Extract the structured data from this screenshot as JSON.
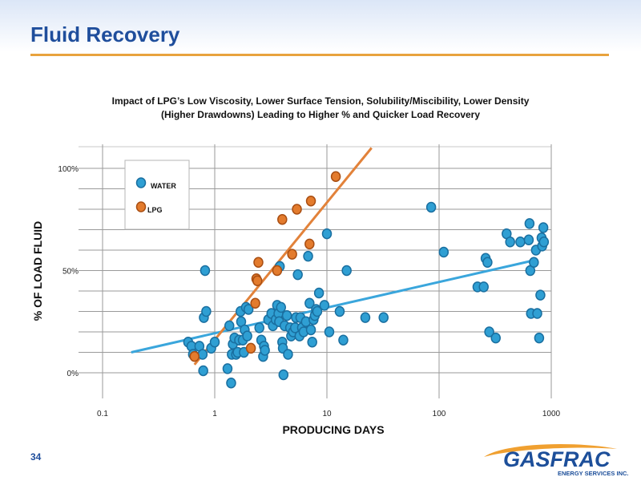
{
  "slide": {
    "title": "Fluid Recovery",
    "page_number": "34",
    "logo_text": "GASFRAC",
    "logo_subtext": "ENERGY SERVICES INC."
  },
  "colors": {
    "title": "#1f4e9c",
    "rule": "#e8a33d",
    "water": "#2f9fd3",
    "lpg": "#e37b2d"
  },
  "chart_data": {
    "type": "scatter",
    "title_lines": [
      "Impact of LPG’s Low Viscosity, Lower Surface Tension, Solubility/Miscibility, Lower Density",
      "(Higher Drawdowns) Leading to Higher % and Quicker Load Recovery"
    ],
    "xlabel": "PRODUCING DAYS",
    "ylabel": "% OF LOAD FLUID",
    "x_scale": "log",
    "xlim": [
      0.1,
      1000
    ],
    "ylim": [
      0,
      100
    ],
    "x_ticks": [
      0.1,
      1,
      10,
      100,
      1000
    ],
    "x_tick_labels": [
      "0.1",
      "1",
      "10",
      "100",
      "1000"
    ],
    "y_ticks": [
      0,
      50,
      100
    ],
    "y_tick_labels": [
      "0%",
      "50%",
      "100%"
    ],
    "grid": true,
    "legend_placement": "top-left",
    "series": [
      {
        "name": "WATER",
        "points": [
          [
            0.58,
            15
          ],
          [
            0.62,
            13
          ],
          [
            0.64,
            9
          ],
          [
            0.73,
            13
          ],
          [
            0.78,
            9
          ],
          [
            0.79,
            1
          ],
          [
            0.8,
            27
          ],
          [
            0.82,
            50
          ],
          [
            0.84,
            30
          ],
          [
            0.93,
            12
          ],
          [
            1.0,
            15
          ],
          [
            1.3,
            2
          ],
          [
            1.35,
            23
          ],
          [
            1.4,
            -5
          ],
          [
            1.42,
            9
          ],
          [
            1.45,
            14
          ],
          [
            1.5,
            17
          ],
          [
            1.55,
            9
          ],
          [
            1.6,
            10
          ],
          [
            1.65,
            16
          ],
          [
            1.7,
            30
          ],
          [
            1.72,
            25
          ],
          [
            1.78,
            16
          ],
          [
            1.82,
            10
          ],
          [
            1.85,
            21
          ],
          [
            1.9,
            32
          ],
          [
            1.95,
            18
          ],
          [
            2.0,
            31
          ],
          [
            2.5,
            22
          ],
          [
            2.6,
            16
          ],
          [
            2.7,
            8
          ],
          [
            2.75,
            13
          ],
          [
            2.8,
            11
          ],
          [
            3.0,
            26
          ],
          [
            3.2,
            29
          ],
          [
            3.3,
            23
          ],
          [
            3.5,
            26
          ],
          [
            3.6,
            33
          ],
          [
            3.7,
            29
          ],
          [
            3.75,
            25
          ],
          [
            3.8,
            52
          ],
          [
            3.9,
            32
          ],
          [
            4.0,
            15
          ],
          [
            4.05,
            12
          ],
          [
            4.1,
            -1
          ],
          [
            4.2,
            23
          ],
          [
            4.4,
            28
          ],
          [
            4.5,
            9
          ],
          [
            4.7,
            22
          ],
          [
            4.8,
            18
          ],
          [
            5.0,
            20
          ],
          [
            5.2,
            22
          ],
          [
            5.3,
            27
          ],
          [
            5.5,
            48
          ],
          [
            5.7,
            18
          ],
          [
            5.8,
            27
          ],
          [
            6.0,
            22
          ],
          [
            6.2,
            20
          ],
          [
            6.5,
            25
          ],
          [
            6.8,
            57
          ],
          [
            7.0,
            34
          ],
          [
            7.2,
            21
          ],
          [
            7.4,
            15
          ],
          [
            7.6,
            26
          ],
          [
            7.8,
            28
          ],
          [
            8.0,
            31
          ],
          [
            8.2,
            30
          ],
          [
            8.5,
            39
          ],
          [
            9.5,
            33
          ],
          [
            10.0,
            68
          ],
          [
            10.5,
            20
          ],
          [
            13.0,
            30
          ],
          [
            14.0,
            16
          ],
          [
            15.0,
            50
          ],
          [
            22.0,
            27
          ],
          [
            32.0,
            27
          ],
          [
            85.0,
            81
          ],
          [
            110.0,
            59
          ],
          [
            220.0,
            42
          ],
          [
            250.0,
            42
          ],
          [
            260.0,
            56
          ],
          [
            270.0,
            54
          ],
          [
            280.0,
            20
          ],
          [
            320.0,
            17
          ],
          [
            400.0,
            68
          ],
          [
            430.0,
            64
          ],
          [
            530.0,
            64
          ],
          [
            630.0,
            65
          ],
          [
            640.0,
            73
          ],
          [
            650.0,
            50
          ],
          [
            660.0,
            29
          ],
          [
            700.0,
            54
          ],
          [
            730.0,
            60
          ],
          [
            750.0,
            29
          ],
          [
            780.0,
            17
          ],
          [
            800.0,
            38
          ],
          [
            820.0,
            66
          ],
          [
            830.0,
            62
          ],
          [
            850.0,
            71
          ],
          [
            860.0,
            64
          ]
        ],
        "trend": [
          [
            0.18,
            10
          ],
          [
            700.0,
            55
          ]
        ]
      },
      {
        "name": "LPG",
        "points": [
          [
            0.66,
            8
          ],
          [
            2.1,
            12
          ],
          [
            2.3,
            34
          ],
          [
            2.35,
            46
          ],
          [
            2.4,
            45
          ],
          [
            2.45,
            54
          ],
          [
            3.6,
            50
          ],
          [
            4.0,
            75
          ],
          [
            4.9,
            58
          ],
          [
            5.4,
            80
          ],
          [
            7.0,
            63
          ],
          [
            7.2,
            84
          ],
          [
            12.0,
            96
          ]
        ],
        "trend": [
          [
            0.66,
            4
          ],
          [
            25.0,
            110
          ]
        ]
      }
    ]
  }
}
